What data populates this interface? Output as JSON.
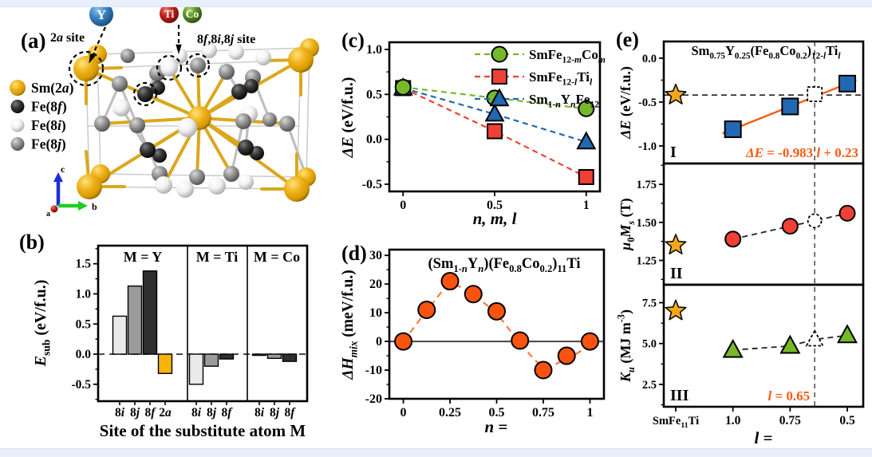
{
  "colors": {
    "background_strip": "#e9effb",
    "gold": "#EDA90B",
    "fe8f": "#3A3A3A",
    "fe8i": "#F3F3F3",
    "fe8j": "#909090",
    "green": "#76B82A",
    "red": "#EE4035",
    "blue": "#2268B2",
    "orange_marker": "#F9530F",
    "orange_curve": "#F97B40",
    "orange_annot": "#FC5A11",
    "star_gold": "#F2A71B",
    "bar_light": "#E9E9E9",
    "bar_mid": "#9B9B9B",
    "bar_dark": "#2F2F2F",
    "bar_gold": "#F5B40A"
  },
  "panel_a": {
    "label": "(a)",
    "site_label_2a": "2*a* site",
    "site_label_8": "8*f*,8*i*,8*j* site",
    "dopants": [
      {
        "symbol": "Y",
        "grad": "blueG"
      },
      {
        "symbol": "Ti",
        "grad": "redG"
      },
      {
        "symbol": "Co",
        "grad": "greenG"
      }
    ],
    "legend": [
      {
        "label": "Sm(2*a*)",
        "grad": "goldG"
      },
      {
        "label": "Fe(8*f*)",
        "grad": "blackG"
      },
      {
        "label": "Fe(8*i*)",
        "grad": "whiteG"
      },
      {
        "label": "Fe(8*j*)",
        "grad": "grayG"
      }
    ],
    "axis_labels": {
      "a": "a",
      "b": "b",
      "c": "c"
    }
  },
  "chart_data": [
    {
      "id": "b",
      "type": "bar",
      "panel_label": "(b)",
      "ylabel": "*E*_{sub} (eV/f.u.)",
      "xlabel": "Site of the substitute atom M",
      "ytick_vals": [
        -0.5,
        0,
        0.5,
        1,
        1.5
      ],
      "ytick_labels": [
        "-0.5",
        "0.0",
        "0.5",
        "1.0",
        "1.5"
      ],
      "ylim": [
        -0.78,
        1.8
      ],
      "grid": false,
      "groups": [
        {
          "title": "M = Y",
          "categories": [
            "8*i*",
            "8*j*",
            "8*f*",
            "2*a*"
          ],
          "values": [
            0.63,
            1.13,
            1.38,
            -0.32
          ],
          "bar_colors": [
            "bar_light",
            "bar_mid",
            "bar_dark",
            "bar_gold"
          ]
        },
        {
          "title": "M = Ti",
          "categories": [
            "8*i*",
            "8*j*",
            "8*f*"
          ],
          "values": [
            -0.5,
            -0.2,
            -0.08
          ],
          "bar_colors": [
            "bar_light",
            "bar_mid",
            "bar_dark"
          ]
        },
        {
          "title": "M = Co",
          "categories": [
            "8*i*",
            "8*j*",
            "8*f*"
          ],
          "values": [
            -0.02,
            -0.07,
            -0.12
          ],
          "bar_colors": [
            "bar_light",
            "bar_mid",
            "bar_dark"
          ]
        }
      ]
    },
    {
      "id": "c",
      "type": "scatter",
      "panel_label": "(c)",
      "ylabel": "*ΔE* (eV/f.u.)",
      "xlabel": "*n, m, l*",
      "xtick_vals": [
        0,
        0.5,
        1
      ],
      "xtick_labels": [
        "0",
        "0.5",
        "1"
      ],
      "xlim": [
        -0.075,
        1.075
      ],
      "ytick_vals": [
        -0.5,
        0,
        0.5,
        1
      ],
      "ytick_labels": [
        "-0.5",
        "0.0",
        "0.5",
        "1.0"
      ],
      "ylim": [
        -0.58,
        1.08
      ],
      "legend_position": "top-right inside",
      "grid": false,
      "series": [
        {
          "name": "SmFe_{12-*m*}Co_{*m*}",
          "marker": "circle",
          "color_key": "green",
          "line": "dashed",
          "x": [
            0,
            0.5,
            1
          ],
          "y": [
            0.58,
            0.46,
            0.34
          ]
        },
        {
          "name": "SmFe_{12-*l*}Ti_{*l*}",
          "marker": "square",
          "color_key": "red",
          "line": "dashed",
          "x": [
            0,
            0.5,
            1
          ],
          "y": [
            0.57,
            0.09,
            -0.42
          ]
        },
        {
          "name": "Sm_{1-*n*}Y_{*n*}Fe_{12}",
          "marker": "triangle",
          "color_key": "blue",
          "line": "dashed",
          "x": [
            0,
            0.5,
            1
          ],
          "y": [
            0.57,
            0.28,
            -0.03
          ]
        }
      ]
    },
    {
      "id": "d",
      "type": "scatter",
      "panel_label": "(d)",
      "title": "(Sm_{1-*n*}Y_{*n*})(Fe_{0.8}Co_{0.2})_{11}Ti",
      "ylabel": "*ΔH*_{*mix*} (meV/f.u.)",
      "xlabel": "*n* =",
      "xtick_vals": [
        0,
        0.25,
        0.5,
        0.75,
        1
      ],
      "xtick_labels": [
        "0",
        "0.25",
        "0.5",
        "0.75",
        "1"
      ],
      "xlim": [
        -0.075,
        1.075
      ],
      "ytick_vals": [
        -20,
        -10,
        0,
        10,
        20,
        30
      ],
      "ytick_labels": [
        "-20",
        "-10",
        "0",
        "10",
        "20",
        "30"
      ],
      "ylim": [
        -20,
        32
      ],
      "zero_line": true,
      "grid": false,
      "series": [
        {
          "name": "ΔH_mix",
          "marker": "circle",
          "color_key": "orange_marker",
          "x": [
            0,
            0.125,
            0.25,
            0.375,
            0.5,
            0.625,
            0.75,
            0.875,
            1
          ],
          "y": [
            0,
            11,
            21,
            16.5,
            10.5,
            0.3,
            -10,
            -5,
            0
          ]
        }
      ],
      "fit_y": [
        0,
        10.5,
        19.5,
        16,
        9.5,
        -0.5,
        -8.5,
        -6,
        -1.5
      ]
    },
    {
      "id": "e",
      "type": "scatter-multipanel",
      "panel_label": "(e)",
      "title": "Sm_{0.75}Y_{0.25}(Fe_{0.8}Co_{0.2})_{12-*l*}Ti_{*l*}",
      "xlabel": "*l* =",
      "x_categories": [
        "SmFe_{11}Ti",
        "1.0",
        "0.75",
        "0.5"
      ],
      "vline": {
        "position": 2.43,
        "label": "*l* = 0.65"
      },
      "panels": [
        {
          "tag": "I",
          "ylabel": "*ΔE* (eV/f.u.)",
          "ytick_vals": [
            0,
            -0.5,
            -1
          ],
          "ytick_labels": [
            "0.0",
            "-0.5",
            "-1.0"
          ],
          "ylim": [
            -1.2,
            0.19
          ],
          "star": {
            "x": 0,
            "y": -0.42
          },
          "hline": -0.42,
          "points": {
            "marker": "square",
            "color_key": "blue",
            "x": [
              1,
              2,
              3
            ],
            "y": [
              -0.81,
              -0.55,
              -0.29
            ]
          },
          "open_point": {
            "marker": "square",
            "x": 2.43,
            "y": -0.41
          },
          "fit_line": {
            "x": [
              0.82,
              3.16
            ],
            "y": [
              -0.857,
              -0.249
            ]
          },
          "annotation": "*ΔE* = -0.983 *l* + 0.23"
        },
        {
          "tag": "II",
          "ylabel": "*μ*_{0}*M*_{*s*} (T)",
          "ytick_vals": [
            1.25,
            1.5,
            1.75
          ],
          "ytick_labels": [
            "1.25",
            "1.50",
            "1.75"
          ],
          "ylim": [
            1.09,
            1.887
          ],
          "star": {
            "x": 0,
            "y": 1.35
          },
          "points": {
            "marker": "circle",
            "color_key": "red",
            "x": [
              1,
              2,
              3
            ],
            "y": [
              1.39,
              1.475,
              1.56
            ]
          },
          "open_point": {
            "marker": "circle",
            "x": 2.43,
            "y": 1.51
          },
          "connect": "dashed"
        },
        {
          "tag": "III",
          "ylabel": "*K*_{*u*} (MJ m^{-3})",
          "ytick_vals": [
            2.5,
            5,
            7.5
          ],
          "ytick_labels": [
            "2.5",
            "5.0",
            "7.5"
          ],
          "ylim": [
            1.13,
            8.6
          ],
          "star": {
            "x": 0,
            "y": 7.0
          },
          "points": {
            "marker": "triangle",
            "color_key": "green",
            "x": [
              1,
              2,
              3
            ],
            "y": [
              4.6,
              4.85,
              5.5
            ]
          },
          "open_point": {
            "marker": "triangle",
            "x": 2.43,
            "y": 5.25
          },
          "connect": "dashed",
          "annotation": "*l* = 0.65"
        }
      ]
    }
  ]
}
